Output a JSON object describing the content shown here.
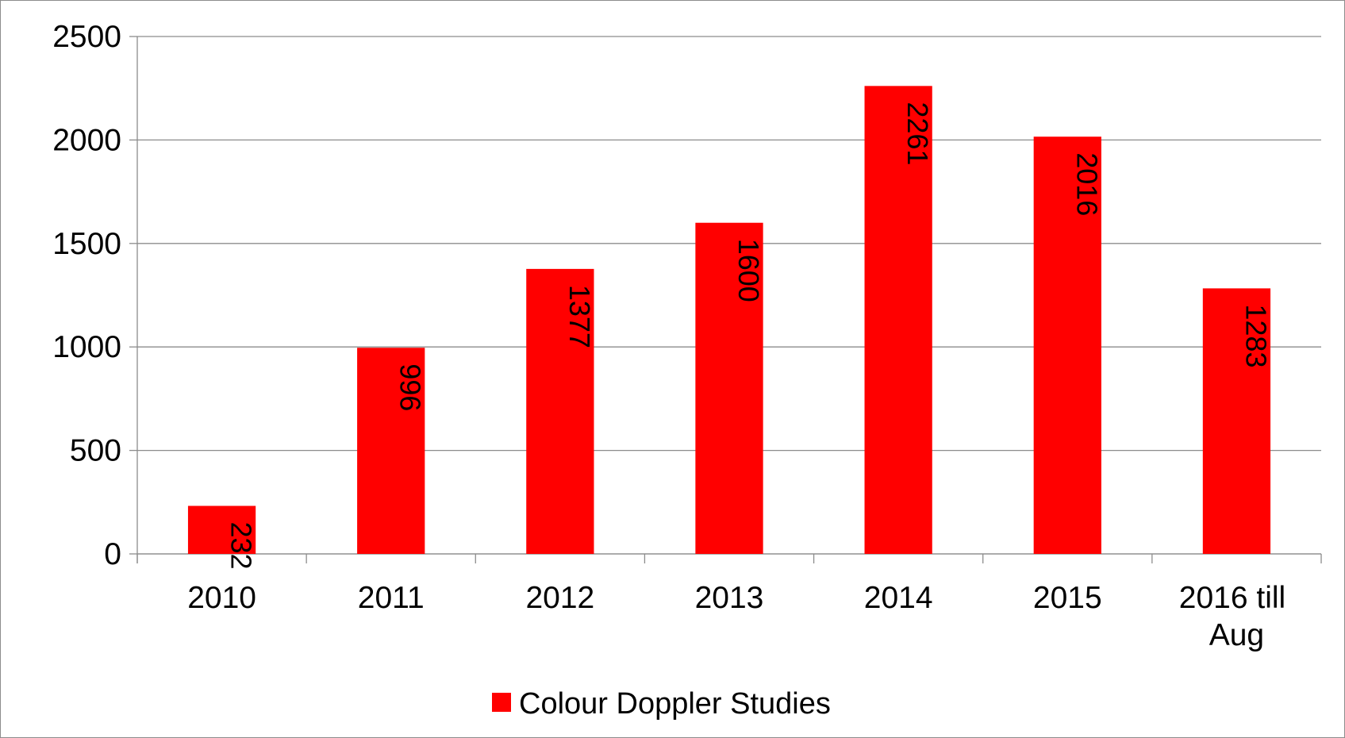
{
  "chart_data": {
    "type": "bar",
    "categories": [
      "2010",
      "2011",
      "2012",
      "2013",
      "2014",
      "2015",
      "2016 till Aug"
    ],
    "series": [
      {
        "name": "Colour Doppler Studies",
        "color": "#ff0000",
        "values": [
          232,
          996,
          1377,
          1600,
          2261,
          2016,
          1283
        ]
      }
    ],
    "ylim": [
      0,
      2500
    ],
    "yticks": [
      0,
      500,
      1000,
      1500,
      2000,
      2500
    ],
    "grid": true,
    "legend": "bottom"
  }
}
